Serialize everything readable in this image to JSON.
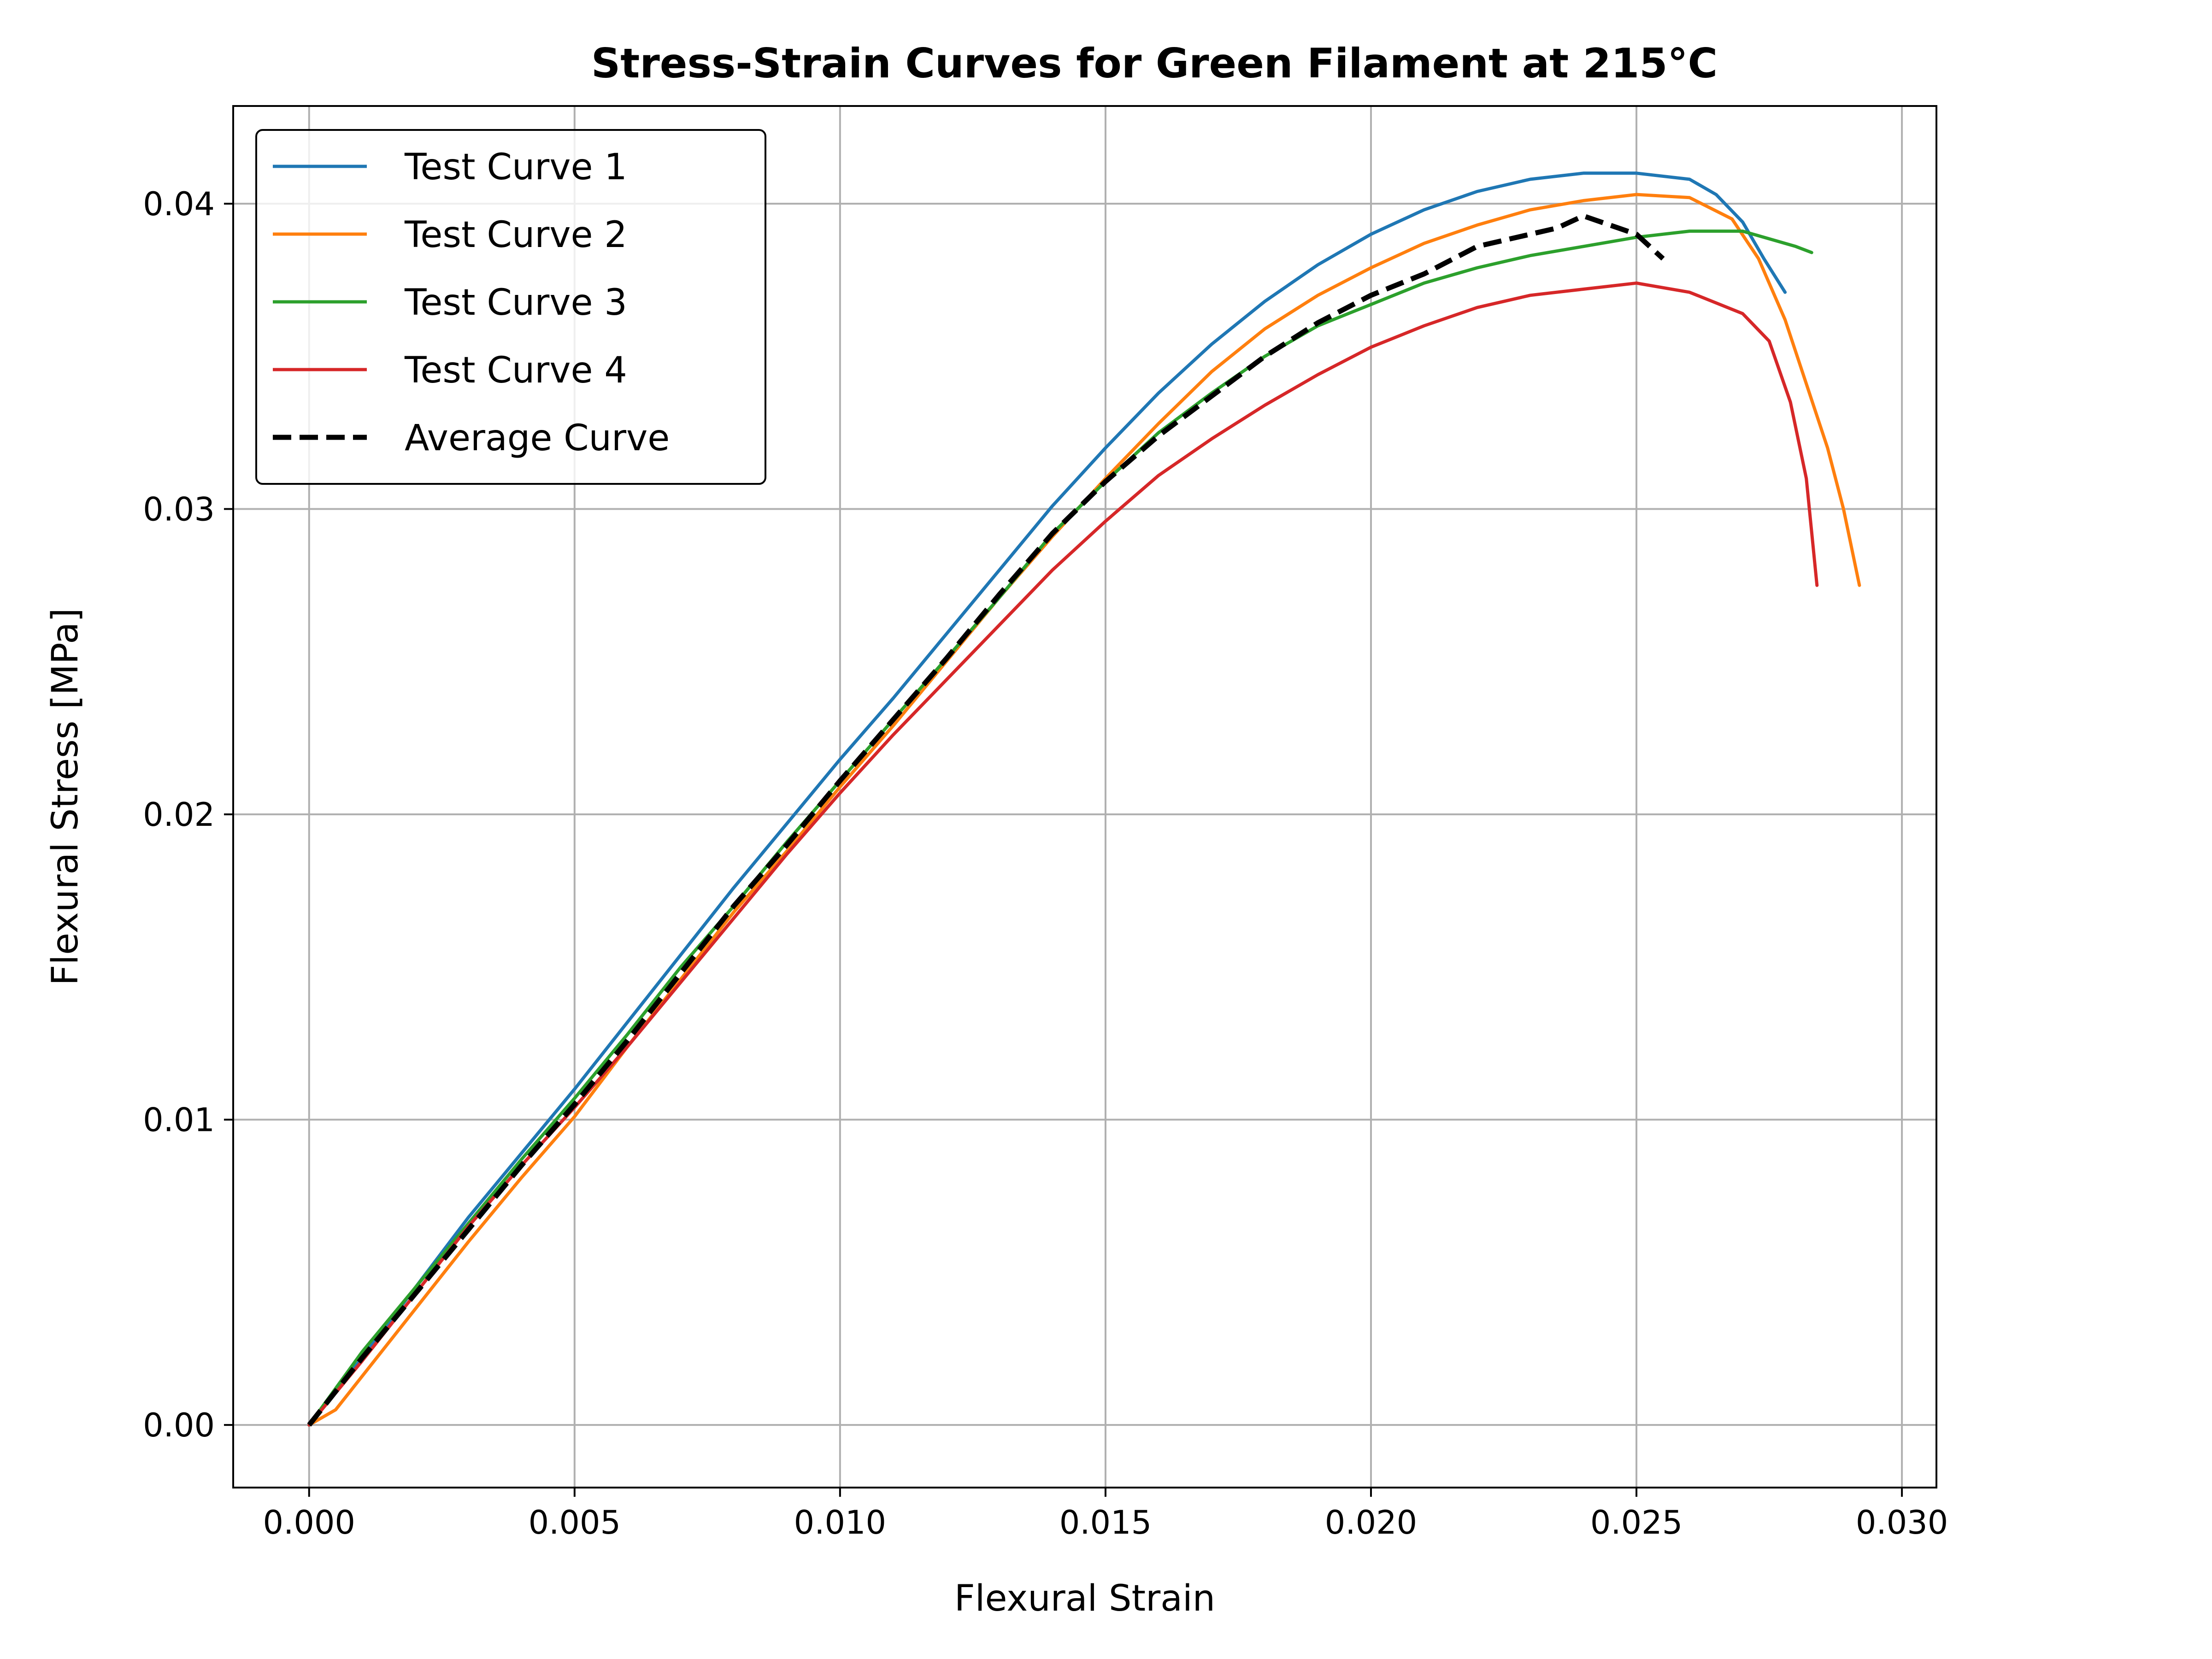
{
  "chart_data": {
    "type": "line",
    "title": "Stress-Strain Curves for Green Filament at 215°C",
    "xlabel": "Flexural Strain",
    "ylabel": "Flexural Stress [MPa]",
    "xlim": [
      -0.00143,
      0.03065
    ],
    "ylim": [
      -0.00205,
      0.0432
    ],
    "xticks": [
      0.0,
      0.005,
      0.01,
      0.015,
      0.02,
      0.025,
      0.03
    ],
    "xtick_labels": [
      "0.000",
      "0.005",
      "0.010",
      "0.015",
      "0.020",
      "0.025",
      "0.030"
    ],
    "yticks": [
      0.0,
      0.01,
      0.02,
      0.03,
      0.04
    ],
    "ytick_labels": [
      "0.00",
      "0.01",
      "0.02",
      "0.03",
      "0.04"
    ],
    "grid": true,
    "legend_position": "top-left",
    "series": [
      {
        "name": "Test Curve 1",
        "color": "#1f77b4",
        "dash": false,
        "x": [
          0.0,
          0.001,
          0.002,
          0.003,
          0.004,
          0.005,
          0.006,
          0.007,
          0.008,
          0.009,
          0.01,
          0.011,
          0.012,
          0.013,
          0.014,
          0.015,
          0.016,
          0.017,
          0.018,
          0.019,
          0.02,
          0.021,
          0.022,
          0.023,
          0.024,
          0.025,
          0.026,
          0.0265,
          0.027,
          0.0274,
          0.0278
        ],
        "y": [
          0.0,
          0.0022,
          0.0045,
          0.0068,
          0.0089,
          0.011,
          0.0132,
          0.0154,
          0.0176,
          0.0197,
          0.0218,
          0.0238,
          0.0259,
          0.028,
          0.0301,
          0.032,
          0.0338,
          0.0354,
          0.0368,
          0.038,
          0.039,
          0.0398,
          0.0404,
          0.0408,
          0.041,
          0.041,
          0.0408,
          0.0403,
          0.0394,
          0.0382,
          0.0371
        ]
      },
      {
        "name": "Test Curve 2",
        "color": "#ff7f0e",
        "dash": false,
        "x": [
          0.0,
          0.0005,
          0.001,
          0.002,
          0.003,
          0.004,
          0.005,
          0.006,
          0.007,
          0.008,
          0.009,
          0.01,
          0.011,
          0.012,
          0.013,
          0.014,
          0.015,
          0.016,
          0.017,
          0.018,
          0.019,
          0.02,
          0.021,
          0.022,
          0.023,
          0.024,
          0.025,
          0.026,
          0.0268,
          0.0273,
          0.0278,
          0.0282,
          0.0286,
          0.0289,
          0.0292
        ],
        "y": [
          0.0,
          0.0005,
          0.0016,
          0.0038,
          0.006,
          0.0081,
          0.0101,
          0.0124,
          0.0146,
          0.0168,
          0.0188,
          0.0209,
          0.0229,
          0.025,
          0.0271,
          0.0291,
          0.031,
          0.0328,
          0.0345,
          0.0359,
          0.037,
          0.0379,
          0.0387,
          0.0393,
          0.0398,
          0.0401,
          0.0403,
          0.0402,
          0.0395,
          0.0382,
          0.0362,
          0.0341,
          0.032,
          0.03,
          0.0275
        ]
      },
      {
        "name": "Test Curve 3",
        "color": "#2ca02c",
        "dash": false,
        "x": [
          0.0,
          0.001,
          0.002,
          0.003,
          0.004,
          0.005,
          0.006,
          0.007,
          0.008,
          0.009,
          0.01,
          0.011,
          0.012,
          0.013,
          0.014,
          0.015,
          0.016,
          0.017,
          0.018,
          0.019,
          0.02,
          0.021,
          0.022,
          0.023,
          0.024,
          0.025,
          0.026,
          0.027,
          0.0276,
          0.028,
          0.0283
        ],
        "y": [
          0.0,
          0.0024,
          0.0045,
          0.0066,
          0.0087,
          0.0107,
          0.0128,
          0.015,
          0.017,
          0.0191,
          0.0211,
          0.0231,
          0.0251,
          0.0271,
          0.0292,
          0.0309,
          0.0325,
          0.0338,
          0.035,
          0.036,
          0.0367,
          0.0374,
          0.0379,
          0.0383,
          0.0386,
          0.0389,
          0.0391,
          0.0391,
          0.0388,
          0.0386,
          0.0384
        ]
      },
      {
        "name": "Test Curve 4",
        "color": "#d62728",
        "dash": false,
        "x": [
          0.0,
          0.001,
          0.002,
          0.003,
          0.004,
          0.005,
          0.006,
          0.007,
          0.008,
          0.009,
          0.01,
          0.011,
          0.012,
          0.013,
          0.014,
          0.015,
          0.016,
          0.017,
          0.018,
          0.019,
          0.02,
          0.021,
          0.022,
          0.023,
          0.024,
          0.025,
          0.026,
          0.027,
          0.0275,
          0.0279,
          0.0282,
          0.0284
        ],
        "y": [
          0.0,
          0.0021,
          0.0043,
          0.0065,
          0.0085,
          0.0104,
          0.0124,
          0.0145,
          0.0166,
          0.0187,
          0.0207,
          0.0226,
          0.0244,
          0.0262,
          0.028,
          0.0296,
          0.0311,
          0.0323,
          0.0334,
          0.0344,
          0.0353,
          0.036,
          0.0366,
          0.037,
          0.0372,
          0.0374,
          0.0371,
          0.0364,
          0.0355,
          0.0335,
          0.031,
          0.0275
        ]
      },
      {
        "name": "Average Curve",
        "color": "#000000",
        "dash": true,
        "x": [
          0.0,
          0.001,
          0.002,
          0.003,
          0.004,
          0.005,
          0.006,
          0.007,
          0.008,
          0.009,
          0.01,
          0.011,
          0.012,
          0.013,
          0.014,
          0.015,
          0.016,
          0.017,
          0.018,
          0.019,
          0.02,
          0.021,
          0.022,
          0.023,
          0.0235,
          0.024,
          0.0245,
          0.025,
          0.0255
        ],
        "y": [
          0.0,
          0.0022,
          0.0043,
          0.0064,
          0.0085,
          0.0105,
          0.0126,
          0.0148,
          0.017,
          0.019,
          0.0211,
          0.0231,
          0.0251,
          0.0272,
          0.0292,
          0.0309,
          0.0324,
          0.0337,
          0.035,
          0.0361,
          0.037,
          0.0377,
          0.0386,
          0.039,
          0.0392,
          0.0396,
          0.0393,
          0.039,
          0.0382
        ]
      }
    ]
  }
}
